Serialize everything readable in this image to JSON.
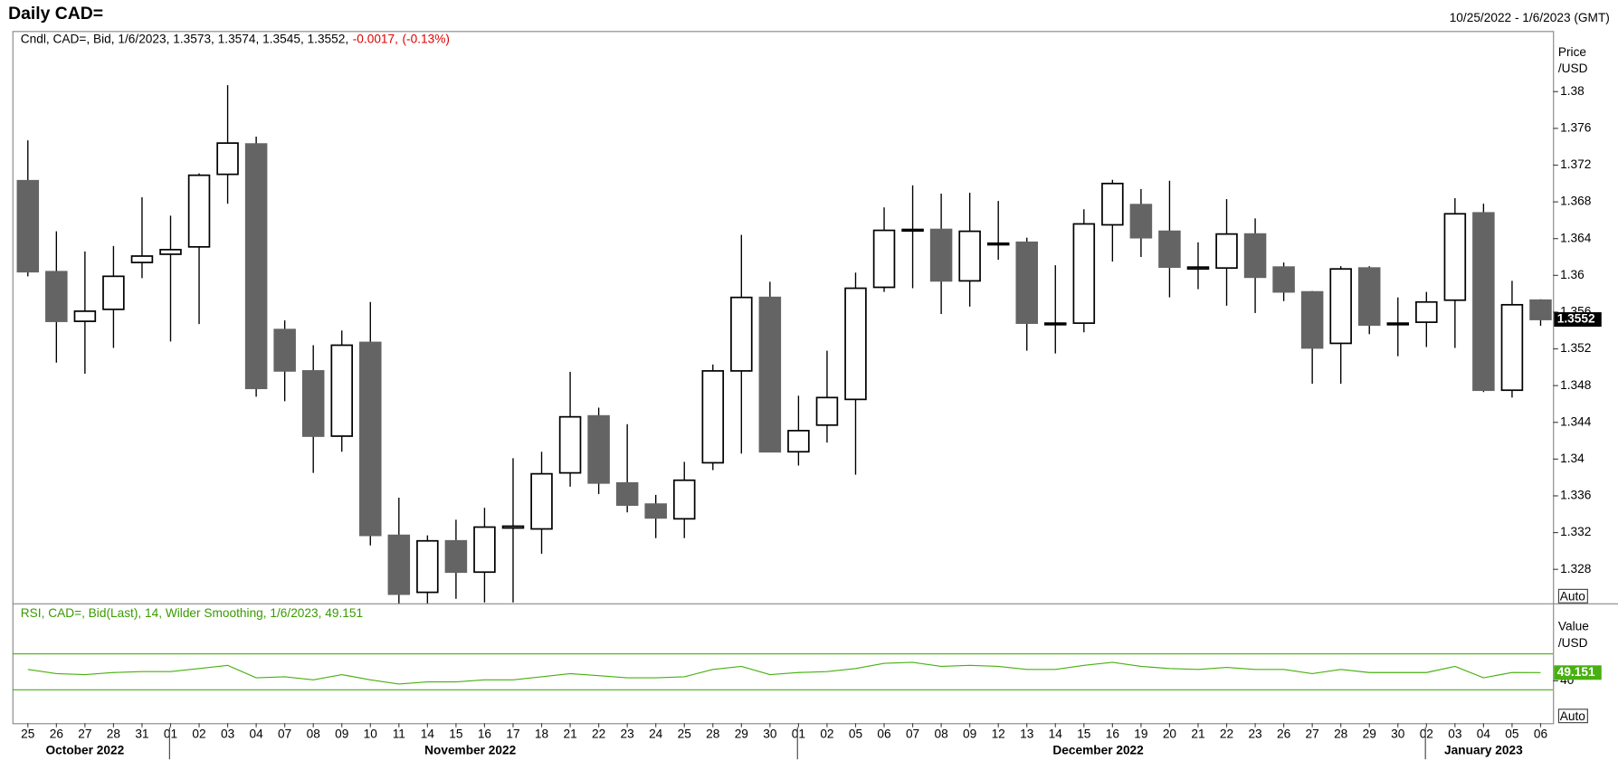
{
  "header": {
    "title": "Daily CAD=",
    "range": "10/25/2022 - 1/6/2023 (GMT)"
  },
  "chart_data": [
    {
      "type": "candlestick",
      "legend": "Cndl, CAD=, Bid, 1/6/2023, 1.3573, 1.3574, 1.3545, 1.3552,",
      "change": "-0.0017,",
      "change_pct": "(-0.13%)",
      "y_label": [
        "Price",
        "/USD"
      ],
      "button": "Auto",
      "categories": [
        "25",
        "26",
        "27",
        "28",
        "31",
        "01",
        "02",
        "03",
        "04",
        "07",
        "08",
        "09",
        "10",
        "11",
        "14",
        "15",
        "16",
        "17",
        "18",
        "21",
        "22",
        "23",
        "24",
        "25",
        "28",
        "29",
        "30",
        "01",
        "02",
        "05",
        "06",
        "07",
        "08",
        "09",
        "12",
        "13",
        "14",
        "15",
        "16",
        "19",
        "20",
        "21",
        "22",
        "23",
        "26",
        "27",
        "28",
        "29",
        "30",
        "02",
        "03",
        "04",
        "05",
        "06"
      ],
      "months": [
        "October 2022",
        "November 2022",
        "December 2022",
        "January 2023"
      ],
      "up_color": "#ffffff",
      "down_color": "#646464",
      "open": [
        1.3703,
        1.3604,
        1.355,
        1.3563,
        1.3614,
        1.3623,
        1.3631,
        1.371,
        1.3743,
        1.3541,
        1.3496,
        1.3425,
        1.3527,
        1.3317,
        1.3255,
        1.3311,
        1.3277,
        1.3325,
        1.3324,
        1.3385,
        1.3447,
        1.3374,
        1.3351,
        1.3335,
        1.3396,
        1.3496,
        1.3576,
        1.3408,
        1.3437,
        1.3465,
        1.3587,
        1.365,
        1.365,
        1.3594,
        1.3635,
        1.3636,
        1.3548,
        1.3548,
        1.3655,
        1.3677,
        1.3648,
        1.3609,
        1.3608,
        1.3645,
        1.3609,
        1.3582,
        1.3526,
        1.3608,
        1.3548,
        1.3549,
        1.3573,
        1.3668,
        1.3475,
        1.3573
      ],
      "high": [
        1.3747,
        1.3648,
        1.3626,
        1.3632,
        1.3685,
        1.3665,
        1.3711,
        1.3807,
        1.3751,
        1.3551,
        1.3524,
        1.354,
        1.3571,
        1.3358,
        1.3317,
        1.3334,
        1.3347,
        1.3401,
        1.3408,
        1.3495,
        1.3456,
        1.3438,
        1.3361,
        1.3397,
        1.3503,
        1.3644,
        1.3593,
        1.3469,
        1.3518,
        1.3603,
        1.3674,
        1.3698,
        1.3689,
        1.369,
        1.3681,
        1.3641,
        1.3611,
        1.3672,
        1.3704,
        1.3694,
        1.3703,
        1.3636,
        1.3683,
        1.3662,
        1.3614,
        1.3583,
        1.361,
        1.361,
        1.3576,
        1.3582,
        1.3684,
        1.3678,
        1.3594,
        1.3574
      ],
      "low": [
        1.3599,
        1.3505,
        1.3493,
        1.3521,
        1.3597,
        1.3528,
        1.3547,
        1.3678,
        1.3468,
        1.3463,
        1.3385,
        1.3408,
        1.3306,
        1.3242,
        1.3242,
        1.3248,
        1.3244,
        1.3244,
        1.3297,
        1.337,
        1.3362,
        1.3342,
        1.3314,
        1.3314,
        1.3388,
        1.3406,
        1.3408,
        1.3393,
        1.3418,
        1.3383,
        1.3582,
        1.3586,
        1.3558,
        1.3566,
        1.3617,
        1.3518,
        1.3515,
        1.3538,
        1.3615,
        1.362,
        1.3576,
        1.3585,
        1.3567,
        1.3559,
        1.3572,
        1.3482,
        1.3482,
        1.3536,
        1.3512,
        1.3522,
        1.3521,
        1.3473,
        1.3467,
        1.3545
      ],
      "close": [
        1.3604,
        1.355,
        1.3561,
        1.3599,
        1.3621,
        1.3628,
        1.3709,
        1.3744,
        1.3477,
        1.3496,
        1.3425,
        1.3524,
        1.3317,
        1.3253,
        1.3311,
        1.3277,
        1.3326,
        1.3327,
        1.3384,
        1.3446,
        1.3374,
        1.335,
        1.3336,
        1.3377,
        1.3496,
        1.3576,
        1.3408,
        1.3431,
        1.3467,
        1.3586,
        1.3649,
        1.365,
        1.3594,
        1.3648,
        1.3634,
        1.3548,
        1.3548,
        1.3656,
        1.37,
        1.3641,
        1.3609,
        1.3607,
        1.3645,
        1.3598,
        1.3582,
        1.3521,
        1.3607,
        1.3546,
        1.3548,
        1.3571,
        1.3667,
        1.3475,
        1.3568,
        1.3552
      ],
      "ylim": [
        1.3243,
        1.3866
      ],
      "yticks": [
        1.38,
        1.376,
        1.372,
        1.368,
        1.364,
        1.36,
        1.356,
        1.352,
        1.348,
        1.344,
        1.34,
        1.336,
        1.332,
        1.328
      ]
    },
    {
      "type": "line",
      "legend": "RSI, CAD=, Bid(Last),  14, Wilder Smoothing, 1/6/2023, 49.151",
      "y_label": [
        "Value",
        "/USD"
      ],
      "button": "Auto",
      "color": "#48b010",
      "values": [
        52.6,
        48.0,
        46.9,
        49.2,
        50.3,
        50.3,
        53.7,
        57.2,
        43.4,
        44.5,
        41.1,
        46.9,
        41.1,
        36.5,
        38.8,
        38.8,
        41.1,
        41.1,
        44.5,
        48.0,
        45.7,
        43.4,
        43.4,
        44.5,
        52.6,
        56.0,
        46.9,
        49.2,
        50.3,
        53.7,
        59.4,
        60.5,
        56.0,
        57.2,
        56.0,
        52.6,
        52.6,
        57.2,
        60.5,
        56.0,
        53.7,
        52.6,
        54.9,
        52.6,
        52.6,
        48.0,
        52.6,
        49.2,
        49.2,
        49.2,
        56.0,
        43.4,
        49.2,
        49.151
      ],
      "levels": [
        30,
        70
      ],
      "ylim": [
        -7,
        126
      ],
      "yticks": [
        40
      ]
    }
  ]
}
